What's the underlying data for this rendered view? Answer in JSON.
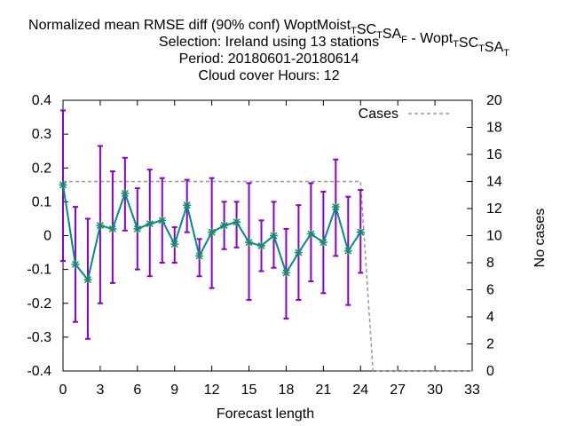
{
  "chart_data": {
    "type": "line",
    "title_lines": [
      "Normalized mean RMSE diff (90% conf) WoptMoist_TSC_TSA_F - Wopt_TSC_TSA_T",
      "Selection: Ireland using    13 stations",
      "Period: 20180601-20180614",
      "Cloud cover   Hours:  12"
    ],
    "xlabel": "Forecast length",
    "ylabel_right": "No cases",
    "xlim": [
      0,
      33
    ],
    "ylim": [
      -0.4,
      0.4
    ],
    "y2lim": [
      0,
      20
    ],
    "x_ticks": [
      "0",
      "3",
      "6",
      "9",
      "12",
      "15",
      "18",
      "21",
      "24",
      "27",
      "30",
      "33"
    ],
    "y_ticks": [
      "-0.4",
      "-0.3",
      "-0.2",
      "-0.1",
      "0",
      "0.1",
      "0.2",
      "0.3",
      "0.4"
    ],
    "y2_ticks": [
      "0",
      "2",
      "4",
      "6",
      "8",
      "10",
      "12",
      "14",
      "16",
      "18",
      "20"
    ],
    "legend": {
      "label": "Cases",
      "placement": "top-right"
    },
    "colors": {
      "line": "#008b8b",
      "marker": "#1a8a6a",
      "errorbar": "#8b00c8",
      "cases": "#999999"
    },
    "series": {
      "x": [
        0,
        1,
        2,
        3,
        4,
        5,
        6,
        7,
        8,
        9,
        10,
        11,
        12,
        13,
        14,
        15,
        16,
        17,
        18,
        19,
        20,
        21,
        22,
        23,
        24
      ],
      "y": [
        0.15,
        -0.085,
        -0.13,
        0.03,
        0.02,
        0.125,
        0.02,
        0.035,
        0.045,
        -0.025,
        0.09,
        -0.06,
        0.01,
        0.03,
        0.04,
        -0.02,
        -0.03,
        0.0,
        -0.11,
        -0.05,
        0.005,
        -0.02,
        0.085,
        -0.045,
        0.01
      ],
      "err_low": [
        -0.075,
        -0.255,
        -0.305,
        -0.2,
        -0.14,
        0.015,
        -0.1,
        -0.12,
        -0.08,
        -0.08,
        0.01,
        -0.12,
        -0.155,
        -0.04,
        -0.035,
        -0.19,
        -0.105,
        -0.095,
        -0.245,
        -0.19,
        -0.135,
        -0.17,
        -0.06,
        -0.205,
        -0.11
      ],
      "err_high": [
        0.37,
        0.085,
        0.05,
        0.265,
        0.19,
        0.23,
        0.14,
        0.195,
        0.17,
        0.025,
        0.165,
        -0.01,
        0.17,
        0.1,
        0.1,
        0.155,
        0.045,
        0.1,
        0.02,
        0.09,
        0.155,
        0.13,
        0.225,
        0.115,
        0.135
      ]
    },
    "cases": {
      "x": [
        0,
        24,
        25,
        33
      ],
      "y": [
        14,
        14,
        0,
        0
      ]
    }
  }
}
